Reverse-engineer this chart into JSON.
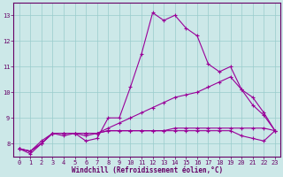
{
  "xlabel": "Windchill (Refroidissement éolien,°C)",
  "ylabel": "",
  "bg_color": "#cce8e8",
  "line_color": "#990099",
  "grid_color": "#99cccc",
  "axis_color": "#660066",
  "series": [
    {
      "x": [
        0,
        1,
        2,
        3,
        4,
        5,
        6,
        7,
        8,
        9,
        10,
        11,
        12,
        13,
        14,
        15,
        16,
        17,
        18,
        19,
        20,
        21,
        22,
        23
      ],
      "y": [
        7.8,
        7.6,
        8.0,
        8.4,
        8.4,
        8.4,
        8.1,
        8.2,
        9.0,
        9.0,
        10.2,
        11.5,
        13.1,
        12.8,
        13.0,
        12.5,
        12.2,
        11.1,
        10.8,
        11.0,
        10.1,
        9.5,
        9.1,
        8.5
      ]
    },
    {
      "x": [
        0,
        1,
        2,
        3,
        4,
        5,
        6,
        7,
        8,
        9,
        10,
        11,
        12,
        13,
        14,
        15,
        16,
        17,
        18,
        19,
        20,
        21,
        22,
        23
      ],
      "y": [
        7.8,
        7.7,
        8.0,
        8.4,
        8.3,
        8.4,
        8.3,
        8.4,
        8.6,
        8.8,
        9.0,
        9.2,
        9.4,
        9.6,
        9.8,
        9.9,
        10.0,
        10.2,
        10.4,
        10.6,
        10.1,
        9.8,
        9.2,
        8.5
      ]
    },
    {
      "x": [
        0,
        1,
        2,
        3,
        4,
        5,
        6,
        7,
        8,
        9,
        10,
        11,
        12,
        13,
        14,
        15,
        16,
        17,
        18,
        19,
        20,
        21,
        22,
        23
      ],
      "y": [
        7.8,
        7.7,
        8.1,
        8.4,
        8.4,
        8.4,
        8.4,
        8.4,
        8.5,
        8.5,
        8.5,
        8.5,
        8.5,
        8.5,
        8.6,
        8.6,
        8.6,
        8.6,
        8.6,
        8.6,
        8.6,
        8.6,
        8.6,
        8.5
      ]
    },
    {
      "x": [
        0,
        1,
        2,
        3,
        4,
        5,
        6,
        7,
        8,
        9,
        10,
        11,
        12,
        13,
        14,
        15,
        16,
        17,
        18,
        19,
        20,
        21,
        22,
        23
      ],
      "y": [
        7.8,
        7.7,
        8.0,
        8.4,
        8.4,
        8.4,
        8.4,
        8.4,
        8.5,
        8.5,
        8.5,
        8.5,
        8.5,
        8.5,
        8.5,
        8.5,
        8.5,
        8.5,
        8.5,
        8.5,
        8.3,
        8.2,
        8.1,
        8.5
      ]
    }
  ],
  "xlim": [
    -0.5,
    23.5
  ],
  "ylim": [
    7.5,
    13.5
  ],
  "yticks": [
    8,
    9,
    10,
    11,
    12,
    13
  ],
  "xticks": [
    0,
    1,
    2,
    3,
    4,
    5,
    6,
    7,
    8,
    9,
    10,
    11,
    12,
    13,
    14,
    15,
    16,
    17,
    18,
    19,
    20,
    21,
    22,
    23
  ],
  "marker": "+",
  "markersize": 3,
  "linewidth": 0.8,
  "xlabel_fontsize": 5.5,
  "tick_fontsize": 5.0,
  "title_fontsize": 7
}
